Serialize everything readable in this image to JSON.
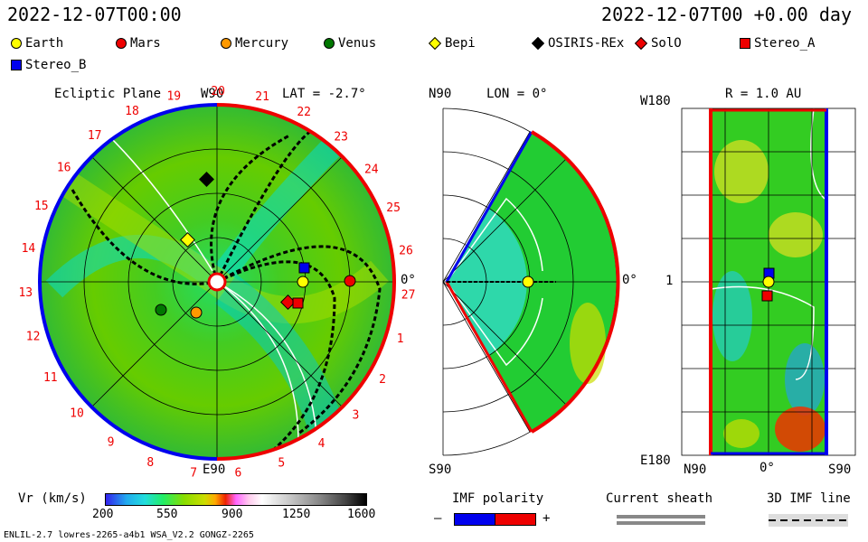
{
  "header": {
    "left_time": "2022-12-07T00:00",
    "right_time": "2022-12-07T00 +0.00 day"
  },
  "legend": [
    {
      "label": "Earth",
      "shape": "circle",
      "color": "#ffff00"
    },
    {
      "label": "Mars",
      "shape": "circle",
      "color": "#ee0000"
    },
    {
      "label": "Mercury",
      "shape": "circle",
      "color": "#ff9900"
    },
    {
      "label": "Venus",
      "shape": "circle",
      "color": "#007700"
    },
    {
      "label": "Bepi",
      "shape": "diamond",
      "color": "#ffff00"
    },
    {
      "label": "OSIRIS-REx",
      "shape": "diamond",
      "color": "#000000"
    },
    {
      "label": "SolO",
      "shape": "diamond",
      "color": "#ee0000"
    },
    {
      "label": "Stereo_A",
      "shape": "square",
      "color": "#ee0000"
    },
    {
      "label": "Stereo_B",
      "shape": "square",
      "color": "#0000ee"
    }
  ],
  "ecliptic": {
    "title": "Ecliptic Plane",
    "top_label": "W90",
    "bottom_label": "E90",
    "right_label": "0°",
    "lat_label": "LAT = -2.7°",
    "rotation_numbers": [
      "19",
      "20",
      "21",
      "22",
      "23",
      "24",
      "25",
      "26",
      "27",
      "1",
      "2",
      "3",
      "4",
      "5",
      "6",
      "7",
      "8",
      "9",
      "10",
      "11",
      "12",
      "13",
      "14",
      "15",
      "16",
      "17",
      "18"
    ]
  },
  "meridional": {
    "top_label": "N90",
    "bottom_label": "S90",
    "lon_label": "LON = 0°",
    "right_label": "0°"
  },
  "map_panel": {
    "title": "R = 1.0 AU",
    "top_left": "W180",
    "bottom_left": "E180",
    "mid_left": "1",
    "x_labels": [
      "N90",
      "0°",
      "S90"
    ]
  },
  "colorbar": {
    "title": "Vr (km/s)",
    "ticks": [
      "200",
      "550",
      "900",
      "1250",
      "1600"
    ]
  },
  "imf_polarity": {
    "title": "IMF polarity",
    "minus": "–",
    "plus": "+"
  },
  "current_sheath": {
    "title": "Current sheath"
  },
  "imf_line": {
    "title": "3D IMF line"
  },
  "footer": {
    "left": "ENLIL-2.7 lowres-2265-a4b1 WSA_V2.2 GONGZ-2265"
  },
  "colors": {
    "field_green": "#33cc00",
    "ring_red": "#ee0000",
    "ring_blue": "#0000ee",
    "ticks_red": "#ee0000"
  }
}
